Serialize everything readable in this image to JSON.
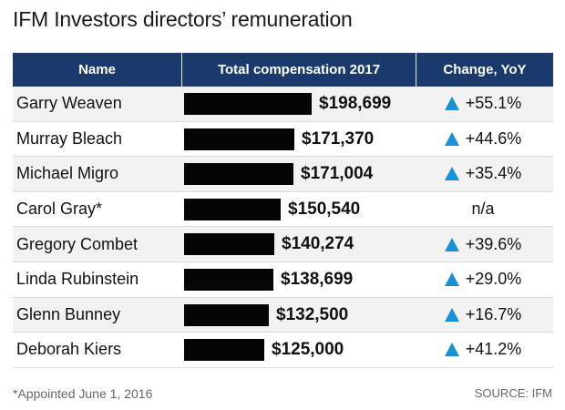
{
  "title": "IFM Investors directors’ remuneration",
  "headers": {
    "name": "Name",
    "total": "Total compensation 2017",
    "change": "Change, YoY"
  },
  "rows": [
    {
      "name": "Garry Weaven",
      "amount": "$198,699",
      "change": "+55.1%",
      "up": true
    },
    {
      "name": "Murray Bleach",
      "amount": "$171,370",
      "change": "+44.6%",
      "up": true
    },
    {
      "name": "Michael Migro",
      "amount": "$171,004",
      "change": "+35.4%",
      "up": true
    },
    {
      "name": "Carol Gray*",
      "amount": "$150,540",
      "change": "n/a",
      "up": false
    },
    {
      "name": "Gregory Combet",
      "amount": "$140,274",
      "change": "+39.6%",
      "up": true
    },
    {
      "name": "Linda Rubinstein",
      "amount": "$138,699",
      "change": "+29.0%",
      "up": true
    },
    {
      "name": "Glenn Bunney",
      "amount": "$132,500",
      "change": "+16.7%",
      "up": true
    },
    {
      "name": "Deborah Kiers",
      "amount": "$125,000",
      "change": "+41.2%",
      "up": true
    }
  ],
  "chart_data": {
    "type": "bar",
    "categories": [
      "Garry Weaven",
      "Murray Bleach",
      "Michael Migro",
      "Carol Gray*",
      "Gregory Combet",
      "Linda Rubinstein",
      "Glenn Bunney",
      "Deborah Kiers"
    ],
    "values": [
      198699,
      171370,
      171004,
      150540,
      140274,
      138699,
      132500,
      125000
    ],
    "change_yoy_percent": [
      55.1,
      44.6,
      35.4,
      null,
      39.6,
      29.0,
      16.7,
      41.2
    ],
    "title": "IFM Investors directors’ remuneration",
    "xlabel": "",
    "ylabel": "",
    "bar_color": "#050505",
    "up_arrow_color": "#1a90d6"
  },
  "colors": {
    "header_bg": "#1a3a6e",
    "row_alt_bg": "#f2f2f2"
  },
  "footnote": "*Appointed June 1, 2016",
  "source": "SOURCE: IFM"
}
